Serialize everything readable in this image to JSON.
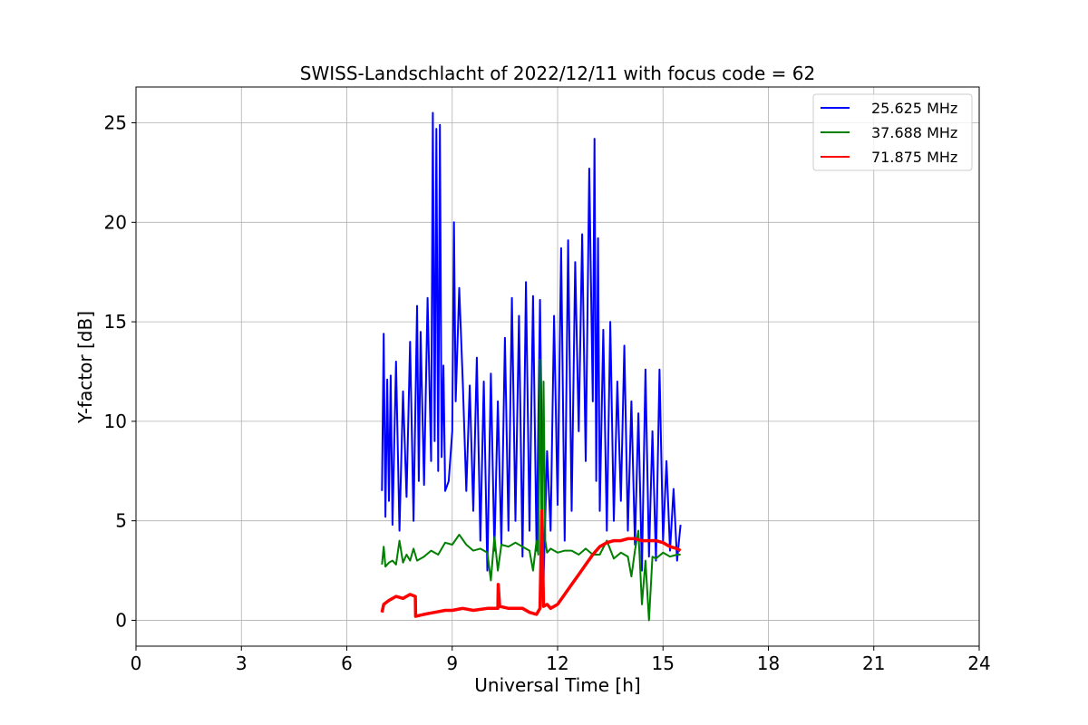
{
  "chart_data": {
    "type": "line",
    "title": "SWISS-Landschlacht of 2022/12/11 with focus code = 62",
    "xlabel": "Universal Time [h]",
    "ylabel": "Y-factor [dB]",
    "xlim": [
      0,
      24
    ],
    "ylim": [
      -1.3,
      26.8
    ],
    "xticks": [
      0,
      3,
      6,
      9,
      12,
      15,
      18,
      21,
      24
    ],
    "yticks": [
      0,
      5,
      10,
      15,
      20,
      25
    ],
    "grid": true,
    "legend_position": "top-right",
    "series": [
      {
        "name": "25.625 MHz",
        "color": "#0000ff",
        "x": [
          7.0,
          7.05,
          7.1,
          7.15,
          7.2,
          7.25,
          7.3,
          7.4,
          7.5,
          7.6,
          7.7,
          7.8,
          7.9,
          8.0,
          8.05,
          8.1,
          8.2,
          8.3,
          8.4,
          8.45,
          8.5,
          8.55,
          8.6,
          8.65,
          8.7,
          8.75,
          8.8,
          8.9,
          9.0,
          9.05,
          9.1,
          9.2,
          9.3,
          9.4,
          9.5,
          9.6,
          9.7,
          9.8,
          9.9,
          10.0,
          10.1,
          10.2,
          10.3,
          10.4,
          10.5,
          10.6,
          10.7,
          10.8,
          10.9,
          11.0,
          11.1,
          11.2,
          11.3,
          11.4,
          11.5,
          11.6,
          11.7,
          11.8,
          11.9,
          12.0,
          12.1,
          12.2,
          12.3,
          12.4,
          12.5,
          12.6,
          12.7,
          12.8,
          12.9,
          13.0,
          13.05,
          13.1,
          13.15,
          13.2,
          13.3,
          13.4,
          13.5,
          13.6,
          13.7,
          13.8,
          13.9,
          14.0,
          14.1,
          14.2,
          14.3,
          14.4,
          14.5,
          14.6,
          14.7,
          14.8,
          14.9,
          15.0,
          15.1,
          15.2,
          15.3,
          15.4,
          15.5
        ],
        "y": [
          6.5,
          14.4,
          5.2,
          12.1,
          6.0,
          12.3,
          4.8,
          13.0,
          4.5,
          11.5,
          6.2,
          14.0,
          5.0,
          15.8,
          7.0,
          14.5,
          6.8,
          16.2,
          8.0,
          25.5,
          9.0,
          24.7,
          7.5,
          24.9,
          8.2,
          12.8,
          6.5,
          7.0,
          9.5,
          20.0,
          11.0,
          16.7,
          12.0,
          6.5,
          11.8,
          5.5,
          13.2,
          4.0,
          12.0,
          2.5,
          12.4,
          3.5,
          11.0,
          3.8,
          14.2,
          4.5,
          16.2,
          5.0,
          15.3,
          3.2,
          17.0,
          4.5,
          16.3,
          3.5,
          16.1,
          2.0,
          8.5,
          4.5,
          15.3,
          5.8,
          18.7,
          4.0,
          19.1,
          5.5,
          18.0,
          9.5,
          19.4,
          8.0,
          22.7,
          11.0,
          24.2,
          7.0,
          19.2,
          5.5,
          14.6,
          4.5,
          15.0,
          5.0,
          12.0,
          6.0,
          13.8,
          4.5,
          11.0,
          3.8,
          10.4,
          2.5,
          12.6,
          3.2,
          9.5,
          3.0,
          12.6,
          4.0,
          8.0,
          3.5,
          6.6,
          3.0,
          4.8
        ]
      },
      {
        "name": "37.688 MHz",
        "color": "#008000",
        "x": [
          7.0,
          7.05,
          7.1,
          7.2,
          7.3,
          7.4,
          7.5,
          7.6,
          7.7,
          7.8,
          7.9,
          8.0,
          8.2,
          8.4,
          8.6,
          8.8,
          9.0,
          9.2,
          9.4,
          9.6,
          9.8,
          10.0,
          10.1,
          10.2,
          10.3,
          10.4,
          10.6,
          10.8,
          11.0,
          11.2,
          11.3,
          11.4,
          11.45,
          11.5,
          11.55,
          11.6,
          11.65,
          11.7,
          11.8,
          12.0,
          12.2,
          12.4,
          12.6,
          12.8,
          13.0,
          13.2,
          13.4,
          13.6,
          13.8,
          14.0,
          14.1,
          14.2,
          14.3,
          14.4,
          14.5,
          14.6,
          14.7,
          14.8,
          15.0,
          15.2,
          15.4,
          15.5
        ],
        "y": [
          2.8,
          3.7,
          2.7,
          2.9,
          3.0,
          2.8,
          4.0,
          2.9,
          3.3,
          3.0,
          3.6,
          3.0,
          3.2,
          3.5,
          3.3,
          3.9,
          3.8,
          4.3,
          3.8,
          3.5,
          3.6,
          3.4,
          2.0,
          4.2,
          2.5,
          3.8,
          3.7,
          3.9,
          3.7,
          3.5,
          2.5,
          4.0,
          3.3,
          13.1,
          3.0,
          12.0,
          4.0,
          3.4,
          3.6,
          3.4,
          3.5,
          3.5,
          3.3,
          3.6,
          3.3,
          3.3,
          4.0,
          3.1,
          3.4,
          3.2,
          2.2,
          3.5,
          4.5,
          0.8,
          3.0,
          0.0,
          3.2,
          3.1,
          3.4,
          3.2,
          3.3,
          3.3
        ]
      },
      {
        "name": "71.875 MHz",
        "color": "#ff0000",
        "x": [
          7.0,
          7.05,
          7.2,
          7.4,
          7.6,
          7.8,
          7.95,
          7.96,
          8.2,
          8.5,
          8.8,
          9.0,
          9.3,
          9.6,
          10.0,
          10.3,
          10.31,
          10.35,
          10.6,
          11.0,
          11.2,
          11.4,
          11.5,
          11.55,
          11.6,
          11.7,
          11.8,
          12.0,
          12.2,
          12.4,
          12.6,
          12.8,
          13.0,
          13.2,
          13.4,
          13.6,
          13.8,
          14.0,
          14.2,
          14.4,
          14.6,
          14.8,
          15.0,
          15.2,
          15.4,
          15.5
        ],
        "y": [
          0.4,
          0.8,
          1.0,
          1.2,
          1.1,
          1.3,
          1.2,
          0.2,
          0.3,
          0.4,
          0.5,
          0.5,
          0.6,
          0.5,
          0.6,
          0.6,
          1.8,
          0.7,
          0.6,
          0.6,
          0.4,
          0.3,
          0.6,
          5.5,
          0.7,
          0.8,
          0.6,
          0.8,
          1.3,
          1.8,
          2.3,
          2.8,
          3.3,
          3.7,
          3.9,
          4.0,
          4.0,
          4.1,
          4.1,
          4.0,
          4.0,
          4.0,
          3.9,
          3.7,
          3.6,
          3.5
        ]
      }
    ]
  }
}
